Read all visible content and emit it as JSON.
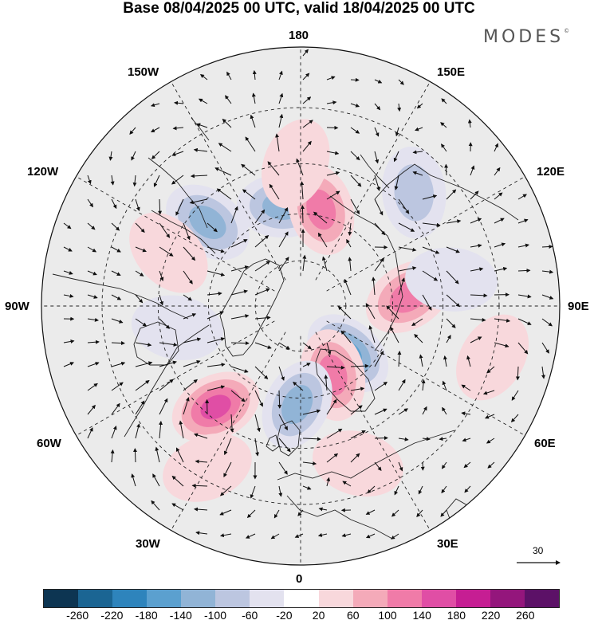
{
  "header": {
    "title": "Base 08/04/2025 00 UTC, valid 18/04/2025 00 UTC",
    "brand": "MODES",
    "brand_mark": "©"
  },
  "map": {
    "projection": "north-polar-stereographic",
    "longitude_labels": {
      "top": "180",
      "bottom": "0",
      "left": "90W",
      "right": "90E",
      "upper_left_1": "150W",
      "upper_left_2": "120W",
      "lower_left_1": "60W",
      "lower_left_2": "30W",
      "upper_right_1": "150E",
      "upper_right_2": "120E",
      "lower_right_1": "60E",
      "lower_right_2": "30E"
    },
    "vector_scale_label": "30",
    "anomaly_centers": [
      {
        "lon": -170,
        "lat": 57,
        "value": -150
      },
      {
        "lon": -132,
        "lat": 50,
        "value": -140
      },
      {
        "lon": 168,
        "lat": 58,
        "value": 150
      },
      {
        "lon": -178,
        "lat": 45,
        "value": 70
      },
      {
        "lon": 95,
        "lat": 55,
        "value": 140
      },
      {
        "lon": 100,
        "lat": 42,
        "value": -60
      },
      {
        "lon": 45,
        "lat": 68,
        "value": -160
      },
      {
        "lon": 25,
        "lat": 65,
        "value": 120
      },
      {
        "lon": -2,
        "lat": 58,
        "value": -140
      },
      {
        "lon": -40,
        "lat": 48,
        "value": 180
      },
      {
        "lon": -80,
        "lat": 50,
        "value": -70
      },
      {
        "lon": -112,
        "lat": 45,
        "value": 60
      },
      {
        "lon": 135,
        "lat": 40,
        "value": -80
      },
      {
        "lon": 75,
        "lat": 30,
        "value": 60
      },
      {
        "lon": -30,
        "lat": 33,
        "value": 40
      },
      {
        "lon": 20,
        "lat": 38,
        "value": 50
      }
    ]
  },
  "colorbar": {
    "ticks": [
      "-260",
      "-220",
      "-180",
      "-140",
      "-100",
      "-60",
      "-20",
      "20",
      "60",
      "100",
      "140",
      "180",
      "220",
      "260"
    ],
    "colors": [
      "#0d3552",
      "#1b6593",
      "#2e84bc",
      "#5ba0cf",
      "#91b4d6",
      "#bcc6e0",
      "#e3e2ef",
      "#ffffff",
      "#f8d8dc",
      "#f4aab9",
      "#f07ba8",
      "#e04ea5",
      "#c61e93",
      "#94167c",
      "#5c1167"
    ]
  }
}
